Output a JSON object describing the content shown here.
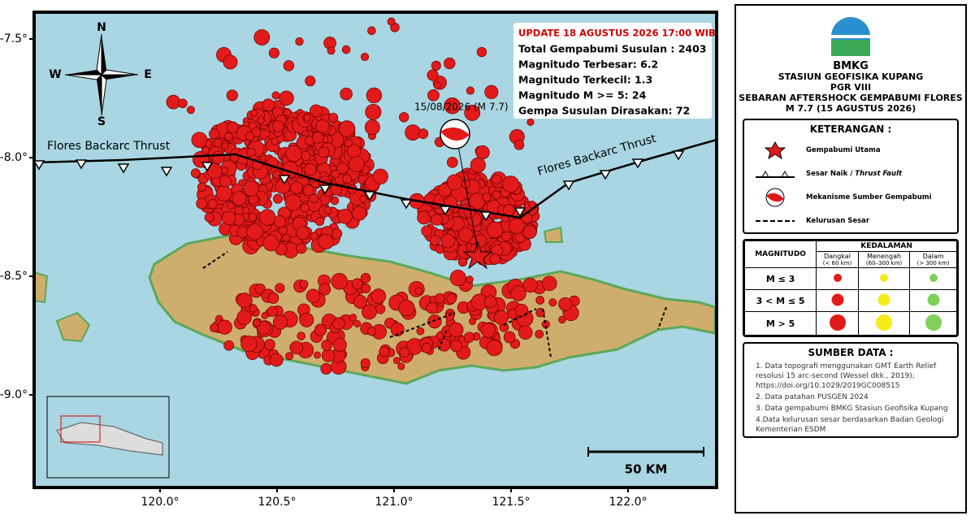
{
  "map": {
    "lat_ticks": [
      {
        "value": -7.5,
        "label": "-7.5°"
      },
      {
        "value": -8.0,
        "label": "-8.0°"
      },
      {
        "value": -8.5,
        "label": "-8.5°"
      },
      {
        "value": -9.0,
        "label": "-9.0°"
      }
    ],
    "lon_ticks": [
      {
        "value": 120.0,
        "label": "120.0°"
      },
      {
        "value": 120.5,
        "label": "120.5°"
      },
      {
        "value": 121.0,
        "label": "121.0°"
      },
      {
        "value": 121.5,
        "label": "121.5°"
      },
      {
        "value": 122.0,
        "label": "122.0°"
      }
    ],
    "compass": {
      "n": "N",
      "s": "S",
      "w": "W",
      "e": "E"
    },
    "fault_labels": [
      "Flores Backarc Thrust",
      "Flores Backarc Thrust"
    ],
    "mainshock_label": "15/08/2026 (M 7.7)",
    "scale_label": "50 KM",
    "info": {
      "update": "UPDATE 18 AGUSTUS 2026 17:00 WIB",
      "lines": [
        "Total Gempabumi Susulan : 2403",
        "Magnitudo Terbesar: 6.2",
        "Magnitudo Terkecil: 1.3",
        "Magnitudo M >= 5: 24",
        "Gempa Susulan Dirasakan: 72"
      ]
    }
  },
  "panel": {
    "agency": "BMKG",
    "station": [
      "STASIUN GEOFISIKA KUPANG",
      "PGR VIII"
    ],
    "title": [
      "SEBARAN AFTERSHOCK GEMPABUMI FLORES",
      "M 7.7 (15 AGUSTUS 2026)"
    ],
    "legend": {
      "title": "KETERANGAN :",
      "items": [
        {
          "text": "Gempabumi Utama"
        },
        {
          "text": "Sesar Naik /",
          "italic": "Thrust Fault"
        },
        {
          "text": "Mekanisme Sumber Gempabumi"
        },
        {
          "text": "Kelurusan Sesar"
        }
      ]
    },
    "depth": {
      "title": "KEDALAMAN",
      "row_header": "MAGNITUDO",
      "columns": [
        {
          "name": "Dangkal",
          "range": "(< 60 km)"
        },
        {
          "name": "Menengah",
          "range": "(60–300 km)"
        },
        {
          "name": "Dalam",
          "range": "(> 300 km)"
        }
      ],
      "rows": [
        "M ≤ 3",
        "3 < M ≤ 5",
        "M > 5"
      ]
    },
    "sources": {
      "title": "SUMBER DATA :",
      "items": [
        "1. Data topografi menggunakan GMT Earth Relief resolusi 15 arc-second (Wessel dkk., 2019); https://doi.org/10.1029/2019GC008515",
        "2. Data patahan PUSGEN 2024",
        "3. Data gempabumi BMKG Stasiun Geofisika Kupang",
        "4.Data kelurusan sesar berdasarkan Badan Geologi Kementerian ESDM"
      ]
    }
  }
}
